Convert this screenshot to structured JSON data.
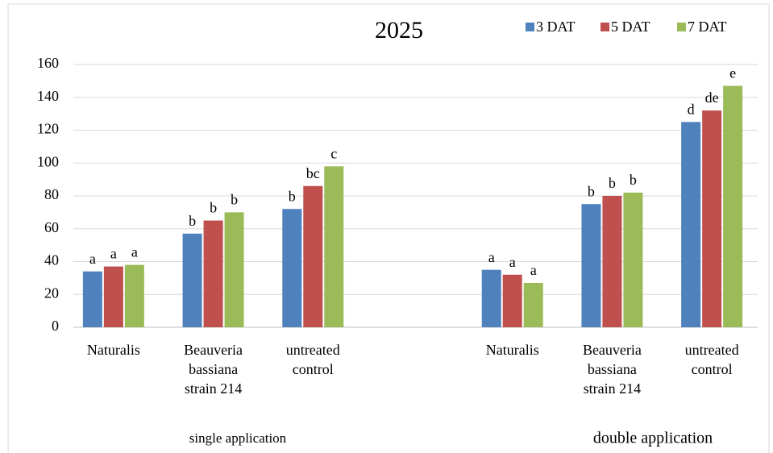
{
  "chart_data": {
    "type": "bar",
    "title": "2025",
    "categories": [
      "Naturalis",
      "Beauveria bassiana strain 214",
      "untreated control",
      null,
      "Naturalis",
      "Beauveria bassiana strain 214",
      "untreated control"
    ],
    "groups": [
      "single application",
      "double application"
    ],
    "series": [
      {
        "name": "3 DAT",
        "color": "#4f81bd",
        "values": [
          34,
          57,
          72,
          null,
          35,
          75,
          125
        ],
        "letters": [
          "a",
          "b",
          "b",
          null,
          "a",
          "b",
          "d"
        ]
      },
      {
        "name": "5 DAT",
        "color": "#c0504d",
        "values": [
          37,
          65,
          86,
          null,
          32,
          80,
          132
        ],
        "letters": [
          "a",
          "b",
          "bc",
          null,
          "a",
          "b",
          "de"
        ]
      },
      {
        "name": "7 DAT",
        "color": "#9bbb59",
        "values": [
          38,
          70,
          98,
          null,
          27,
          82,
          147
        ],
        "letters": [
          "a",
          "b",
          "c",
          null,
          "a",
          "b",
          "e"
        ]
      }
    ],
    "ylim": [
      0,
      160
    ],
    "yticks": [
      0,
      20,
      40,
      60,
      80,
      100,
      120,
      140,
      160
    ],
    "grid": true,
    "legend": "top-right"
  }
}
